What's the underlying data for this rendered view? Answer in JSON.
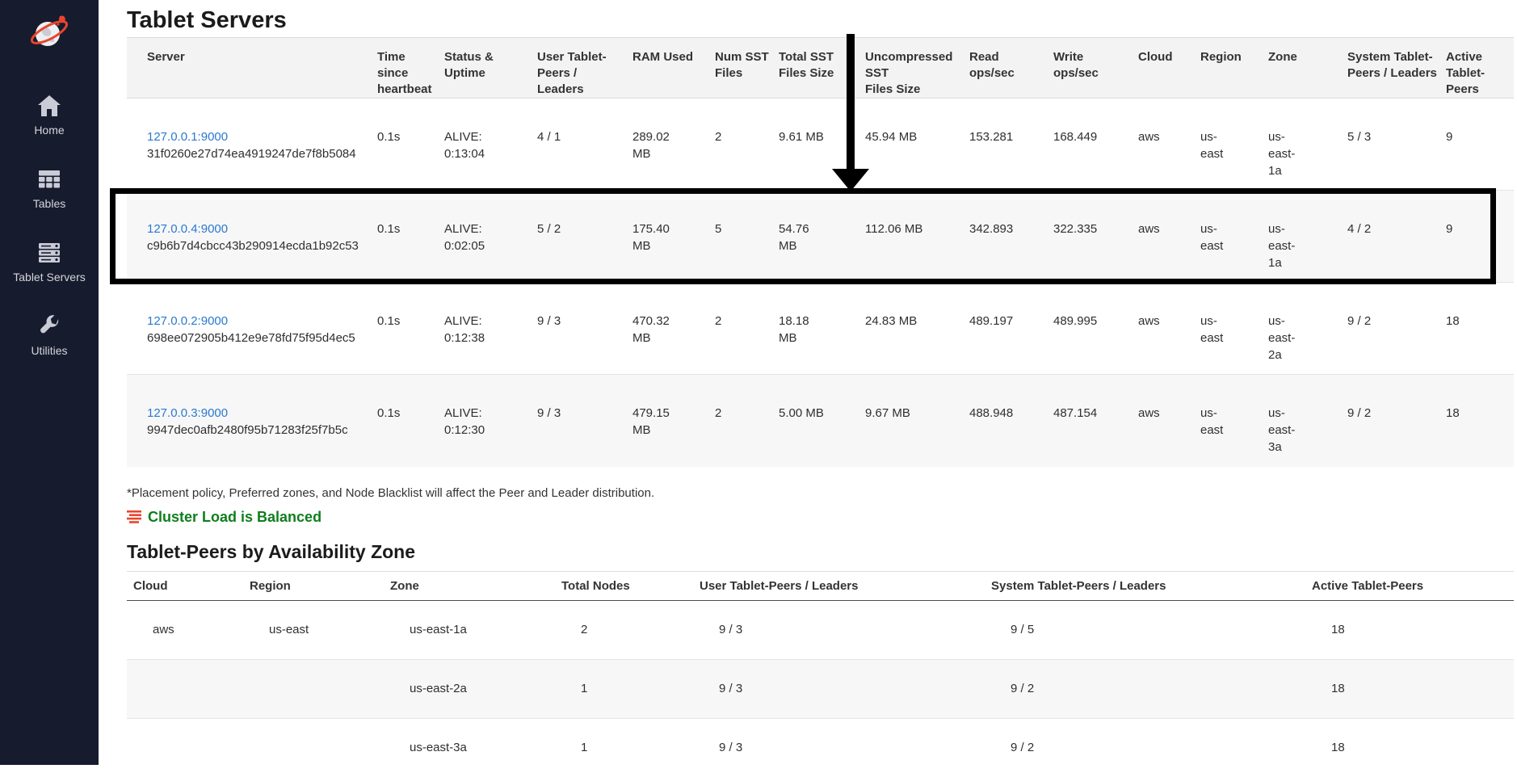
{
  "sidebar": {
    "items": [
      {
        "label": "Home"
      },
      {
        "label": "Tables"
      },
      {
        "label": "Tablet Servers"
      },
      {
        "label": "Utilities"
      }
    ]
  },
  "page": {
    "title": "Tablet Servers",
    "footnote": "*Placement policy, Preferred zones, and Node Blacklist will affect the Peer and Leader distribution.",
    "balance_status": "Cluster Load is Balanced",
    "az_title": "Tablet-Peers by Availability Zone"
  },
  "colors": {
    "sidebar_bg": "#171b2e",
    "accent_red": "#e8452c",
    "status_green": "#0f7e1d",
    "link_blue": "#2a79d0",
    "annotation_black": "#000000"
  },
  "main_table": {
    "columns": [
      {
        "key": "server",
        "label": "Server"
      },
      {
        "key": "time_since_heartbeat",
        "label": "Time\nsince\nheartbeat"
      },
      {
        "key": "status_uptime",
        "label": "Status &\nUptime"
      },
      {
        "key": "user_tablet_peers_leaders",
        "label": "User Tablet-\nPeers /\nLeaders"
      },
      {
        "key": "ram_used",
        "label": "RAM Used"
      },
      {
        "key": "num_sst_files",
        "label": "Num SST\nFiles"
      },
      {
        "key": "total_sst_files_size",
        "label": "Total SST\nFiles Size"
      },
      {
        "key": "uncompressed_sst_files_size",
        "label": "Uncompressed\nSST\nFiles Size"
      },
      {
        "key": "read_ops_sec",
        "label": "Read\nops/sec"
      },
      {
        "key": "write_ops_sec",
        "label": "Write\nops/sec"
      },
      {
        "key": "cloud",
        "label": "Cloud"
      },
      {
        "key": "region",
        "label": "Region"
      },
      {
        "key": "zone",
        "label": "Zone"
      },
      {
        "key": "system_tablet_peers_leaders",
        "label": "System Tablet-\nPeers / Leaders"
      },
      {
        "key": "active_tablet_peers",
        "label": "Active\nTablet-\nPeers"
      }
    ],
    "rows": [
      {
        "server": {
          "link": "127.0.0.1:9000",
          "uuid": "31f0260e27d74ea4919247de7f8b5084"
        },
        "time_since_heartbeat": "0.1s",
        "status_uptime": "ALIVE:\n0:13:04",
        "user_tablet_peers_leaders": "4 / 1",
        "ram_used": "289.02\nMB",
        "num_sst_files": "2",
        "total_sst_files_size": "9.61 MB",
        "uncompressed_sst_files_size": "45.94 MB",
        "read_ops_sec": "153.281",
        "write_ops_sec": "168.449",
        "cloud": "aws",
        "region": "us-\neast",
        "zone": "us-\neast-\n1a",
        "system_tablet_peers_leaders": "5 / 3",
        "active_tablet_peers": "9"
      },
      {
        "server": {
          "link": "127.0.0.4:9000",
          "uuid": "c9b6b7d4cbcc43b290914ecda1b92c53"
        },
        "time_since_heartbeat": "0.1s",
        "status_uptime": "ALIVE:\n0:02:05",
        "user_tablet_peers_leaders": "5 / 2",
        "ram_used": "175.40\nMB",
        "num_sst_files": "5",
        "total_sst_files_size": "54.76\nMB",
        "uncompressed_sst_files_size": "112.06 MB",
        "read_ops_sec": "342.893",
        "write_ops_sec": "322.335",
        "cloud": "aws",
        "region": "us-\neast",
        "zone": "us-\neast-\n1a",
        "system_tablet_peers_leaders": "4 / 2",
        "active_tablet_peers": "9"
      },
      {
        "server": {
          "link": "127.0.0.2:9000",
          "uuid": "698ee072905b412e9e78fd75f95d4ec5"
        },
        "time_since_heartbeat": "0.1s",
        "status_uptime": "ALIVE:\n0:12:38",
        "user_tablet_peers_leaders": "9 / 3",
        "ram_used": "470.32\nMB",
        "num_sst_files": "2",
        "total_sst_files_size": "18.18\nMB",
        "uncompressed_sst_files_size": "24.83 MB",
        "read_ops_sec": "489.197",
        "write_ops_sec": "489.995",
        "cloud": "aws",
        "region": "us-\neast",
        "zone": "us-\neast-\n2a",
        "system_tablet_peers_leaders": "9 / 2",
        "active_tablet_peers": "18"
      },
      {
        "server": {
          "link": "127.0.0.3:9000",
          "uuid": "9947dec0afb2480f95b71283f25f7b5c"
        },
        "time_since_heartbeat": "0.1s",
        "status_uptime": "ALIVE:\n0:12:30",
        "user_tablet_peers_leaders": "9 / 3",
        "ram_used": "479.15\nMB",
        "num_sst_files": "2",
        "total_sst_files_size": "5.00 MB",
        "uncompressed_sst_files_size": "9.67 MB",
        "read_ops_sec": "488.948",
        "write_ops_sec": "487.154",
        "cloud": "aws",
        "region": "us-\neast",
        "zone": "us-\neast-\n3a",
        "system_tablet_peers_leaders": "9 / 2",
        "active_tablet_peers": "18"
      }
    ]
  },
  "az_table": {
    "columns": [
      {
        "key": "cloud",
        "label": "Cloud"
      },
      {
        "key": "region",
        "label": "Region"
      },
      {
        "key": "zone",
        "label": "Zone"
      },
      {
        "key": "total_nodes",
        "label": "Total Nodes"
      },
      {
        "key": "user_tablet_peers_leaders",
        "label": "User Tablet-Peers / Leaders"
      },
      {
        "key": "system_tablet_peers_leaders",
        "label": "System Tablet-Peers / Leaders"
      },
      {
        "key": "active_tablet_peers",
        "label": "Active Tablet-Peers"
      }
    ],
    "rows": [
      {
        "cloud": "aws",
        "region": "us-east",
        "zone": "us-east-1a",
        "total_nodes": "2",
        "user_tablet_peers_leaders": "9 / 3",
        "system_tablet_peers_leaders": "9 / 5",
        "active_tablet_peers": "18"
      },
      {
        "cloud": "",
        "region": "",
        "zone": "us-east-2a",
        "total_nodes": "1",
        "user_tablet_peers_leaders": "9 / 3",
        "system_tablet_peers_leaders": "9 / 2",
        "active_tablet_peers": "18"
      },
      {
        "cloud": "",
        "region": "",
        "zone": "us-east-3a",
        "total_nodes": "1",
        "user_tablet_peers_leaders": "9 / 3",
        "system_tablet_peers_leaders": "9 / 2",
        "active_tablet_peers": "18"
      }
    ]
  }
}
